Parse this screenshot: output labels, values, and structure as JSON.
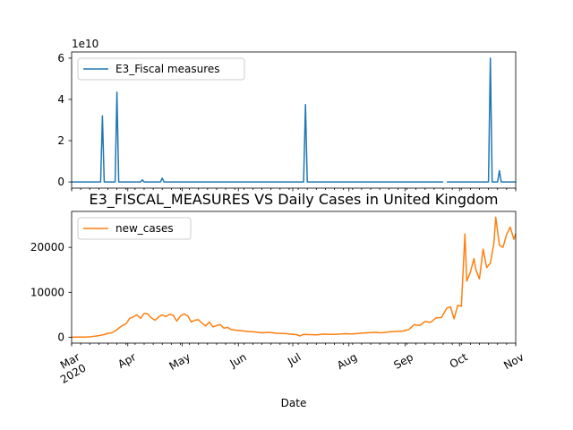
{
  "chart_data": [
    {
      "type": "line",
      "title": "",
      "xlabel": "",
      "ylabel": "",
      "multiplier_label": "1e10",
      "ylim": [
        -0.3,
        6.3
      ],
      "yticks": [
        0,
        2,
        4,
        6
      ],
      "ytick_labels": [
        "0",
        "2",
        "4",
        "6"
      ],
      "legend": "upper left",
      "color": "#1f77b4",
      "series": [
        {
          "name": "E3_Fiscal measures",
          "points": [
            [
              "2020-03-01",
              0
            ],
            [
              "2020-03-17",
              0
            ],
            [
              "2020-03-18",
              3.2
            ],
            [
              "2020-03-19",
              0
            ],
            [
              "2020-03-25",
              0
            ],
            [
              "2020-03-26",
              4.35
            ],
            [
              "2020-03-27",
              0
            ],
            [
              "2020-04-08",
              0
            ],
            [
              "2020-04-09",
              0.1
            ],
            [
              "2020-04-10",
              0
            ],
            [
              "2020-04-19",
              0
            ],
            [
              "2020-04-20",
              0.18
            ],
            [
              "2020-04-21",
              0
            ],
            [
              "2020-07-07",
              0
            ],
            [
              "2020-07-08",
              3.75
            ],
            [
              "2020-07-09",
              0
            ],
            [
              "2020-09-22",
              0
            ],
            null,
            [
              "2020-09-24",
              0
            ],
            [
              "2020-10-17",
              0
            ],
            [
              "2020-10-18",
              6.0
            ],
            [
              "2020-10-19",
              0
            ],
            [
              "2020-10-22",
              0
            ],
            [
              "2020-10-23",
              0.55
            ],
            [
              "2020-10-24",
              0
            ],
            [
              "2020-11-01",
              0
            ]
          ]
        }
      ]
    },
    {
      "type": "line",
      "title": "E3_FISCAL_MEASURES VS Daily Cases in United Kingdom",
      "xlabel": "Date",
      "ylabel": "",
      "ylim": [
        -1300,
        28000
      ],
      "yticks": [
        0,
        10000,
        20000
      ],
      "ytick_labels": [
        "0",
        "10000",
        "20000"
      ],
      "xlim": [
        "2020-03-01",
        "2020-11-01"
      ],
      "xtick_labels": [
        {
          "date": "2020-03-01",
          "label": "Mar",
          "sub": "2020"
        },
        {
          "date": "2020-04-01",
          "label": "Apr"
        },
        {
          "date": "2020-05-01",
          "label": "May"
        },
        {
          "date": "2020-06-01",
          "label": "Jun"
        },
        {
          "date": "2020-07-01",
          "label": "Jul"
        },
        {
          "date": "2020-08-01",
          "label": "Aug"
        },
        {
          "date": "2020-09-01",
          "label": "Sep"
        },
        {
          "date": "2020-10-01",
          "label": "Oct"
        },
        {
          "date": "2020-11-01",
          "label": "Nov"
        }
      ],
      "legend": "upper left",
      "color": "#ff7f0e",
      "series": [
        {
          "name": "new_cases",
          "points": [
            [
              "2020-03-01",
              20
            ],
            [
              "2020-03-05",
              50
            ],
            [
              "2020-03-08",
              60
            ],
            [
              "2020-03-11",
              90
            ],
            [
              "2020-03-13",
              200
            ],
            [
              "2020-03-15",
              300
            ],
            [
              "2020-03-17",
              450
            ],
            [
              "2020-03-19",
              600
            ],
            [
              "2020-03-21",
              900
            ],
            [
              "2020-03-23",
              1000
            ],
            [
              "2020-03-25",
              1400
            ],
            [
              "2020-03-27",
              2000
            ],
            [
              "2020-03-29",
              2600
            ],
            [
              "2020-03-31",
              3000
            ],
            [
              "2020-04-02",
              4200
            ],
            [
              "2020-04-04",
              4500
            ],
            [
              "2020-04-06",
              5000
            ],
            [
              "2020-04-08",
              4200
            ],
            [
              "2020-04-10",
              5300
            ],
            [
              "2020-04-12",
              5200
            ],
            [
              "2020-04-14",
              4300
            ],
            [
              "2020-04-16",
              3800
            ],
            [
              "2020-04-18",
              4500
            ],
            [
              "2020-04-20",
              5000
            ],
            [
              "2020-04-22",
              4600
            ],
            [
              "2020-04-24",
              5100
            ],
            [
              "2020-04-26",
              4900
            ],
            [
              "2020-04-28",
              3600
            ],
            [
              "2020-04-30",
              4700
            ],
            [
              "2020-05-02",
              5200
            ],
            [
              "2020-05-04",
              4800
            ],
            [
              "2020-05-06",
              3400
            ],
            [
              "2020-05-08",
              3800
            ],
            [
              "2020-05-10",
              3900
            ],
            [
              "2020-05-12",
              3100
            ],
            [
              "2020-05-14",
              2500
            ],
            [
              "2020-05-16",
              3400
            ],
            [
              "2020-05-18",
              2300
            ],
            [
              "2020-05-20",
              2600
            ],
            [
              "2020-05-22",
              2800
            ],
            [
              "2020-05-24",
              2000
            ],
            [
              "2020-05-26",
              2200
            ],
            [
              "2020-05-28",
              1700
            ],
            [
              "2020-05-30",
              1600
            ],
            [
              "2020-06-02",
              1500
            ],
            [
              "2020-06-06",
              1300
            ],
            [
              "2020-06-10",
              1200
            ],
            [
              "2020-06-14",
              1000
            ],
            [
              "2020-06-18",
              1100
            ],
            [
              "2020-06-22",
              900
            ],
            [
              "2020-06-26",
              850
            ],
            [
              "2020-06-30",
              700
            ],
            [
              "2020-07-03",
              600
            ],
            [
              "2020-07-05",
              300
            ],
            [
              "2020-07-07",
              650
            ],
            [
              "2020-07-10",
              600
            ],
            [
              "2020-07-14",
              550
            ],
            [
              "2020-07-18",
              700
            ],
            [
              "2020-07-22",
              650
            ],
            [
              "2020-07-26",
              700
            ],
            [
              "2020-07-30",
              800
            ],
            [
              "2020-08-03",
              750
            ],
            [
              "2020-08-07",
              900
            ],
            [
              "2020-08-11",
              1000
            ],
            [
              "2020-08-15",
              1100
            ],
            [
              "2020-08-19",
              1000
            ],
            [
              "2020-08-23",
              1200
            ],
            [
              "2020-08-27",
              1300
            ],
            [
              "2020-08-31",
              1400
            ],
            [
              "2020-09-03",
              1700
            ],
            [
              "2020-09-06",
              2800
            ],
            [
              "2020-09-09",
              2600
            ],
            [
              "2020-09-12",
              3500
            ],
            [
              "2020-09-15",
              3300
            ],
            [
              "2020-09-18",
              4300
            ],
            [
              "2020-09-21",
              4400
            ],
            [
              "2020-09-24",
              6500
            ],
            [
              "2020-09-26",
              6800
            ],
            [
              "2020-09-28",
              4100
            ],
            [
              "2020-09-30",
              7100
            ],
            [
              "2020-10-02",
              6900
            ],
            [
              "2020-10-04",
              23000
            ],
            [
              "2020-10-05",
              12500
            ],
            [
              "2020-10-07",
              14500
            ],
            [
              "2020-10-09",
              17500
            ],
            [
              "2020-10-10",
              15000
            ],
            [
              "2020-10-12",
              13000
            ],
            [
              "2020-10-14",
              19600
            ],
            [
              "2020-10-16",
              15500
            ],
            [
              "2020-10-18",
              16500
            ],
            [
              "2020-10-20",
              21000
            ],
            [
              "2020-10-21",
              26700
            ],
            [
              "2020-10-23",
              20500
            ],
            [
              "2020-10-25",
              20000
            ],
            [
              "2020-10-27",
              22900
            ],
            [
              "2020-10-29",
              24500
            ],
            [
              "2020-10-31",
              21800
            ],
            [
              "2020-11-01",
              23000
            ]
          ]
        }
      ]
    }
  ]
}
